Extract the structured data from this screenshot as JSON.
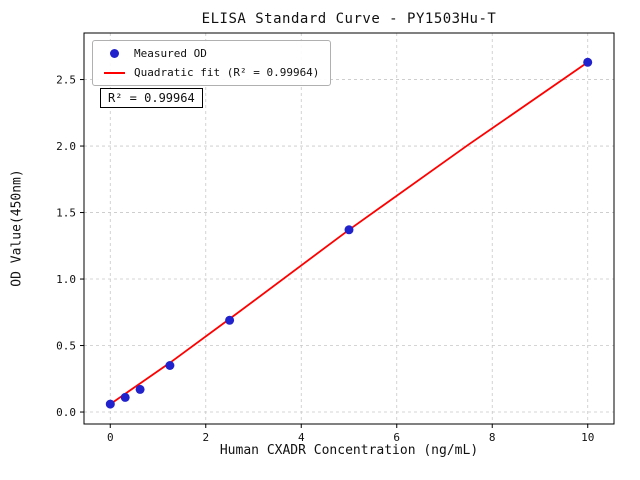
{
  "figure": {
    "background": "#ffffff"
  },
  "chart_data": {
    "type": "scatter",
    "title": "ELISA Standard Curve - PY1503Hu-T",
    "xlabel": "Human CXADR Concentration (ng/mL)",
    "ylabel": "OD Value(450nm)",
    "xlim": [
      -0.55,
      10.55
    ],
    "ylim": [
      -0.09,
      2.85
    ],
    "xticks": [
      0,
      2,
      4,
      6,
      8,
      10
    ],
    "xticklabels": [
      "0",
      "2",
      "4",
      "6",
      "8",
      "10"
    ],
    "yticks": [
      0,
      0.5,
      1.0,
      1.5,
      2.0,
      2.5
    ],
    "yticklabels": [
      "0.0",
      "0.5",
      "1.0",
      "1.5",
      "2.0",
      "2.5"
    ],
    "grid": true,
    "annotation": "R² = 0.99964",
    "legend": {
      "position": "upper-left",
      "entries": [
        {
          "label": "Measured OD",
          "marker": "point",
          "color": "#2222cc"
        },
        {
          "label": "Quadratic fit (R² = 0.99964)",
          "marker": "line",
          "color": "#ff0000"
        }
      ]
    },
    "series": [
      {
        "name": "Measured OD",
        "type": "scatter",
        "color": "#2222cc",
        "points": [
          [
            0,
            0.06
          ],
          [
            0.3125,
            0.11
          ],
          [
            0.625,
            0.17
          ],
          [
            1.25,
            0.35
          ],
          [
            2.5,
            0.69
          ],
          [
            5,
            1.37
          ],
          [
            10,
            2.63
          ]
        ]
      },
      {
        "name": "Quadratic fit",
        "type": "line",
        "color": "#ff0000",
        "points": [
          [
            0,
            0.06
          ],
          [
            1.25,
            0.37
          ],
          [
            2.5,
            0.7
          ],
          [
            5,
            1.37
          ],
          [
            7.5,
            2.01
          ],
          [
            10,
            2.63
          ]
        ]
      }
    ]
  }
}
